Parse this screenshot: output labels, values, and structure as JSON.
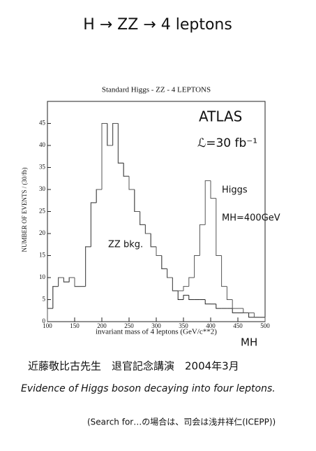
{
  "heading": "H → ZZ → 4 leptons",
  "chart_data": {
    "type": "histogram",
    "title": "Standard Higgs - ZZ - 4 LEPTONS",
    "x_label": "invariant mass of 4 leptons (GeV/c**2)",
    "y_label": "NUMBER OF EVENTS / (30/fb)",
    "bins": [
      100,
      110,
      120,
      130,
      140,
      150,
      160,
      170,
      180,
      190,
      200,
      210,
      220,
      230,
      240,
      250,
      260,
      270,
      280,
      290,
      300,
      310,
      320,
      330,
      340,
      350,
      360,
      370,
      380,
      390,
      400,
      410,
      420,
      430,
      440,
      450,
      460,
      470,
      480,
      490,
      500
    ],
    "series": [
      {
        "name": "ZZ bkg.",
        "color": "#222222",
        "values": [
          3,
          8,
          10,
          9,
          10,
          8,
          8,
          17,
          27,
          30,
          45,
          40,
          45,
          36,
          33,
          30,
          25,
          22,
          20,
          17,
          15,
          12,
          10,
          7,
          5,
          6,
          5,
          5,
          5,
          4,
          4,
          3,
          3,
          3,
          2,
          2,
          2,
          1,
          1,
          1
        ]
      },
      {
        "name": "Higgs",
        "color": "#555555",
        "values": [
          3,
          8,
          10,
          9,
          10,
          8,
          8,
          17,
          27,
          30,
          45,
          40,
          45,
          36,
          33,
          30,
          25,
          22,
          20,
          17,
          15,
          12,
          10,
          7,
          7,
          8,
          10,
          15,
          22,
          32,
          28,
          15,
          8,
          5,
          3,
          3,
          2,
          2,
          1,
          1
        ]
      }
    ],
    "xlim": [
      100,
      500
    ],
    "ylim": [
      0,
      50
    ],
    "xticks": [
      100,
      150,
      200,
      250,
      300,
      350,
      400,
      450,
      500
    ],
    "yticks": [
      0,
      5,
      10,
      15,
      20,
      25,
      30,
      35,
      40,
      45
    ],
    "annotations": [
      "ATLAS",
      "ℒ=30 fb⁻¹",
      "MH=400GeV",
      "MH"
    ]
  },
  "footer": [
    "近藤敬比古先生　退官記念講演　2004年3月",
    "Evidence of Higgs boson decaying into four leptons.",
    "(Search for…の場合は、司会は浅井祥仁(ICEPP))"
  ]
}
